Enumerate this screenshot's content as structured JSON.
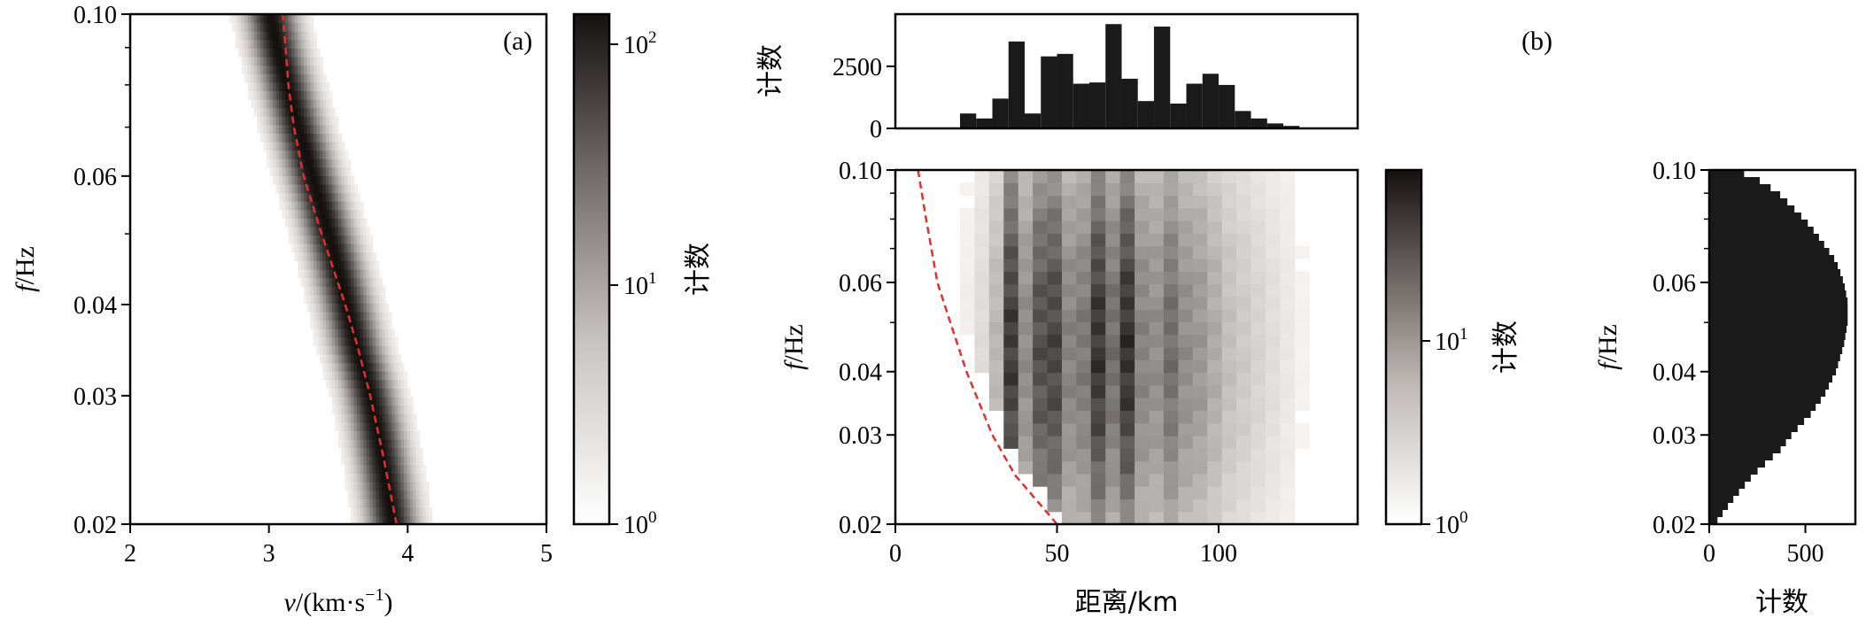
{
  "chart_data": [
    {
      "id": "a",
      "type": "heatmap",
      "panel_label": "(a)",
      "xlabel_italic": "v",
      "xlabel_rest": "/(km·s",
      "xlabel_sup": "−1",
      "xlabel_close": ")",
      "ylabel_italic": "f",
      "ylabel_rest": "/Hz",
      "xlim": [
        2,
        5
      ],
      "ylim": [
        0.02,
        0.1
      ],
      "yscale": "log",
      "xticks": [
        "2",
        "3",
        "4",
        "5"
      ],
      "yticks": [
        "0.02",
        "0.03",
        "0.04",
        "0.06",
        "0.10"
      ],
      "colorbar": {
        "label": "计数",
        "scale": "log",
        "range": [
          1,
          150
        ],
        "ticks": [
          "10",
          "10",
          "10"
        ],
        "tick_exponents": [
          "2",
          "1",
          "0"
        ]
      },
      "ridge_center": [
        {
          "f": 0.02,
          "v": 3.88
        },
        {
          "f": 0.025,
          "v": 3.8
        },
        {
          "f": 0.03,
          "v": 3.72
        },
        {
          "f": 0.035,
          "v": 3.62
        },
        {
          "f": 0.04,
          "v": 3.55
        },
        {
          "f": 0.05,
          "v": 3.42
        },
        {
          "f": 0.06,
          "v": 3.3
        },
        {
          "f": 0.07,
          "v": 3.2
        },
        {
          "f": 0.08,
          "v": 3.12
        },
        {
          "f": 0.09,
          "v": 3.05
        },
        {
          "f": 0.1,
          "v": 3.0
        }
      ],
      "reference_curve": [
        {
          "f": 0.02,
          "v": 3.92
        },
        {
          "f": 0.025,
          "v": 3.82
        },
        {
          "f": 0.03,
          "v": 3.73
        },
        {
          "f": 0.035,
          "v": 3.64
        },
        {
          "f": 0.04,
          "v": 3.55
        },
        {
          "f": 0.05,
          "v": 3.38
        },
        {
          "f": 0.06,
          "v": 3.25
        },
        {
          "f": 0.07,
          "v": 3.18
        },
        {
          "f": 0.08,
          "v": 3.14
        },
        {
          "f": 0.09,
          "v": 3.12
        },
        {
          "f": 0.1,
          "v": 3.1
        }
      ],
      "reference_color": "#e03030"
    },
    {
      "id": "b",
      "type": "heatmap",
      "panel_label": "(b)",
      "xlabel": "距离/km",
      "ylabel_italic": "f",
      "ylabel_rest": "/Hz",
      "xlim": [
        0,
        143
      ],
      "ylim": [
        0.02,
        0.1
      ],
      "yscale": "log",
      "xticks": [
        "0",
        "50",
        "100"
      ],
      "yticks": [
        "0.02",
        "0.03",
        "0.04",
        "0.06",
        "0.10"
      ],
      "colorbar": {
        "label": "计数",
        "scale": "log",
        "range": [
          1,
          40
        ],
        "ticks": [
          "10",
          "10"
        ],
        "tick_exponents": [
          "1",
          "0"
        ]
      },
      "bins_x_start": 20,
      "bins_x_width": 4.5,
      "column_weights": [
        0.15,
        0.35,
        0.75,
        0.95,
        0.55,
        0.85,
        0.9,
        0.6,
        0.65,
        0.98,
        0.7,
        1.0,
        0.6,
        0.55,
        0.7,
        0.55,
        0.5,
        0.4,
        0.3,
        0.25,
        0.2,
        0.15,
        0.1,
        0.05
      ],
      "reference_curve": [
        {
          "f": 0.02,
          "d": 50
        },
        {
          "f": 0.025,
          "d": 37
        },
        {
          "f": 0.03,
          "d": 30
        },
        {
          "f": 0.04,
          "d": 22
        },
        {
          "f": 0.05,
          "d": 17
        },
        {
          "f": 0.06,
          "d": 13
        },
        {
          "f": 0.08,
          "d": 9.5
        },
        {
          "f": 0.1,
          "d": 7
        }
      ],
      "reference_color": "#e03030"
    },
    {
      "id": "b-top",
      "type": "bar",
      "ylabel": "计数",
      "ylim": [
        0,
        4600
      ],
      "yticks": [
        "0",
        "2500"
      ],
      "bin_start": 0,
      "bin_width": 5,
      "values": [
        0,
        0,
        0,
        20,
        600,
        400,
        1200,
        3500,
        600,
        2900,
        3000,
        1800,
        1850,
        4200,
        2000,
        1100,
        4100,
        1000,
        1800,
        2200,
        1750,
        700,
        400,
        200,
        100,
        0,
        0,
        0
      ],
      "bar_color": "#1a1a1a"
    },
    {
      "id": "b-right",
      "type": "bar",
      "orientation": "horizontal",
      "xlabel": "计数",
      "ylabel_italic": "f",
      "ylabel_rest": "/Hz",
      "xlim": [
        0,
        760
      ],
      "xticks": [
        "0",
        "500"
      ],
      "yticks": [
        "0.02",
        "0.03",
        "0.04",
        "0.06",
        "0.10"
      ],
      "ylim": [
        0.02,
        0.1
      ],
      "yscale": "log",
      "profile": [
        {
          "f": 0.02,
          "count": 30
        },
        {
          "f": 0.022,
          "count": 110
        },
        {
          "f": 0.025,
          "count": 230
        },
        {
          "f": 0.028,
          "count": 370
        },
        {
          "f": 0.03,
          "count": 430
        },
        {
          "f": 0.033,
          "count": 530
        },
        {
          "f": 0.036,
          "count": 600
        },
        {
          "f": 0.04,
          "count": 660
        },
        {
          "f": 0.045,
          "count": 700
        },
        {
          "f": 0.05,
          "count": 720
        },
        {
          "f": 0.055,
          "count": 720
        },
        {
          "f": 0.06,
          "count": 700
        },
        {
          "f": 0.066,
          "count": 660
        },
        {
          "f": 0.072,
          "count": 590
        },
        {
          "f": 0.078,
          "count": 520
        },
        {
          "f": 0.084,
          "count": 440
        },
        {
          "f": 0.09,
          "count": 360
        },
        {
          "f": 0.095,
          "count": 270
        },
        {
          "f": 0.1,
          "count": 140
        }
      ],
      "bar_color": "#1a1a1a"
    }
  ]
}
